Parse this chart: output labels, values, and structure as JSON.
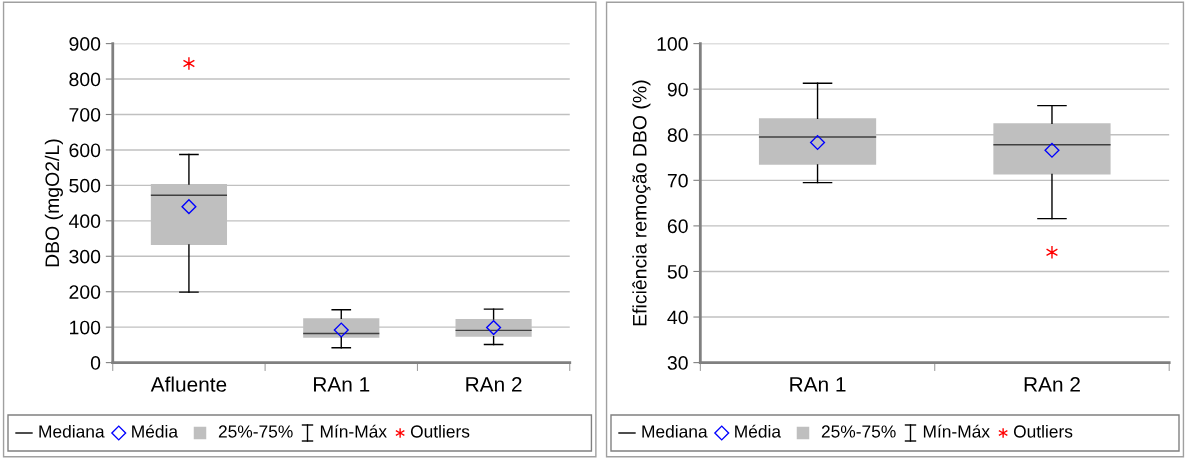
{
  "chart_data": [
    {
      "type": "box",
      "ylabel": "DBO (mgO2/L)",
      "categories": [
        "Afluente",
        "RAn 1",
        "RAn 2"
      ],
      "ylim": [
        0,
        900
      ],
      "yticks": [
        0,
        100,
        200,
        300,
        400,
        500,
        600,
        700,
        800,
        900
      ],
      "grid": "y",
      "series": [
        {
          "color": "#bfbfbf",
          "boxes": [
            {
              "low": 199,
              "q1": 332,
              "median": 472,
              "q3": 504,
              "high": 587,
              "mean": 440,
              "outliers": [
                844
              ]
            },
            {
              "low": 42,
              "q1": 70,
              "median": 82,
              "q3": 125,
              "high": 149,
              "mean": 92
            },
            {
              "low": 51,
              "q1": 73,
              "median": 91,
              "q3": 123,
              "high": 151,
              "mean": 99
            }
          ]
        }
      ],
      "annotations": [
        "Mediana",
        "Média",
        "25%-75%",
        "Mín-Máx",
        "Outliers"
      ]
    },
    {
      "type": "box",
      "ylabel": "Eficiência remoção DBO (%)",
      "categories": [
        "RAn 1",
        "RAn 2"
      ],
      "ylim": [
        30,
        100
      ],
      "yticks": [
        30,
        40,
        50,
        60,
        70,
        80,
        90,
        100
      ],
      "grid": "y",
      "series": [
        {
          "color": "#bfbfbf",
          "boxes": [
            {
              "low": 69.5,
              "q1": 73.4,
              "median": 79.5,
              "q3": 83.6,
              "high": 91.3,
              "mean": 78.3
            },
            {
              "low": 61.6,
              "q1": 71.3,
              "median": 77.8,
              "q3": 82.5,
              "high": 86.4,
              "mean": 76.6,
              "outliers": [
                54.2
              ]
            }
          ]
        }
      ],
      "annotations": [
        "Mediana",
        "Média",
        "25%-75%",
        "Mín-Máx",
        "Outliers"
      ]
    }
  ]
}
